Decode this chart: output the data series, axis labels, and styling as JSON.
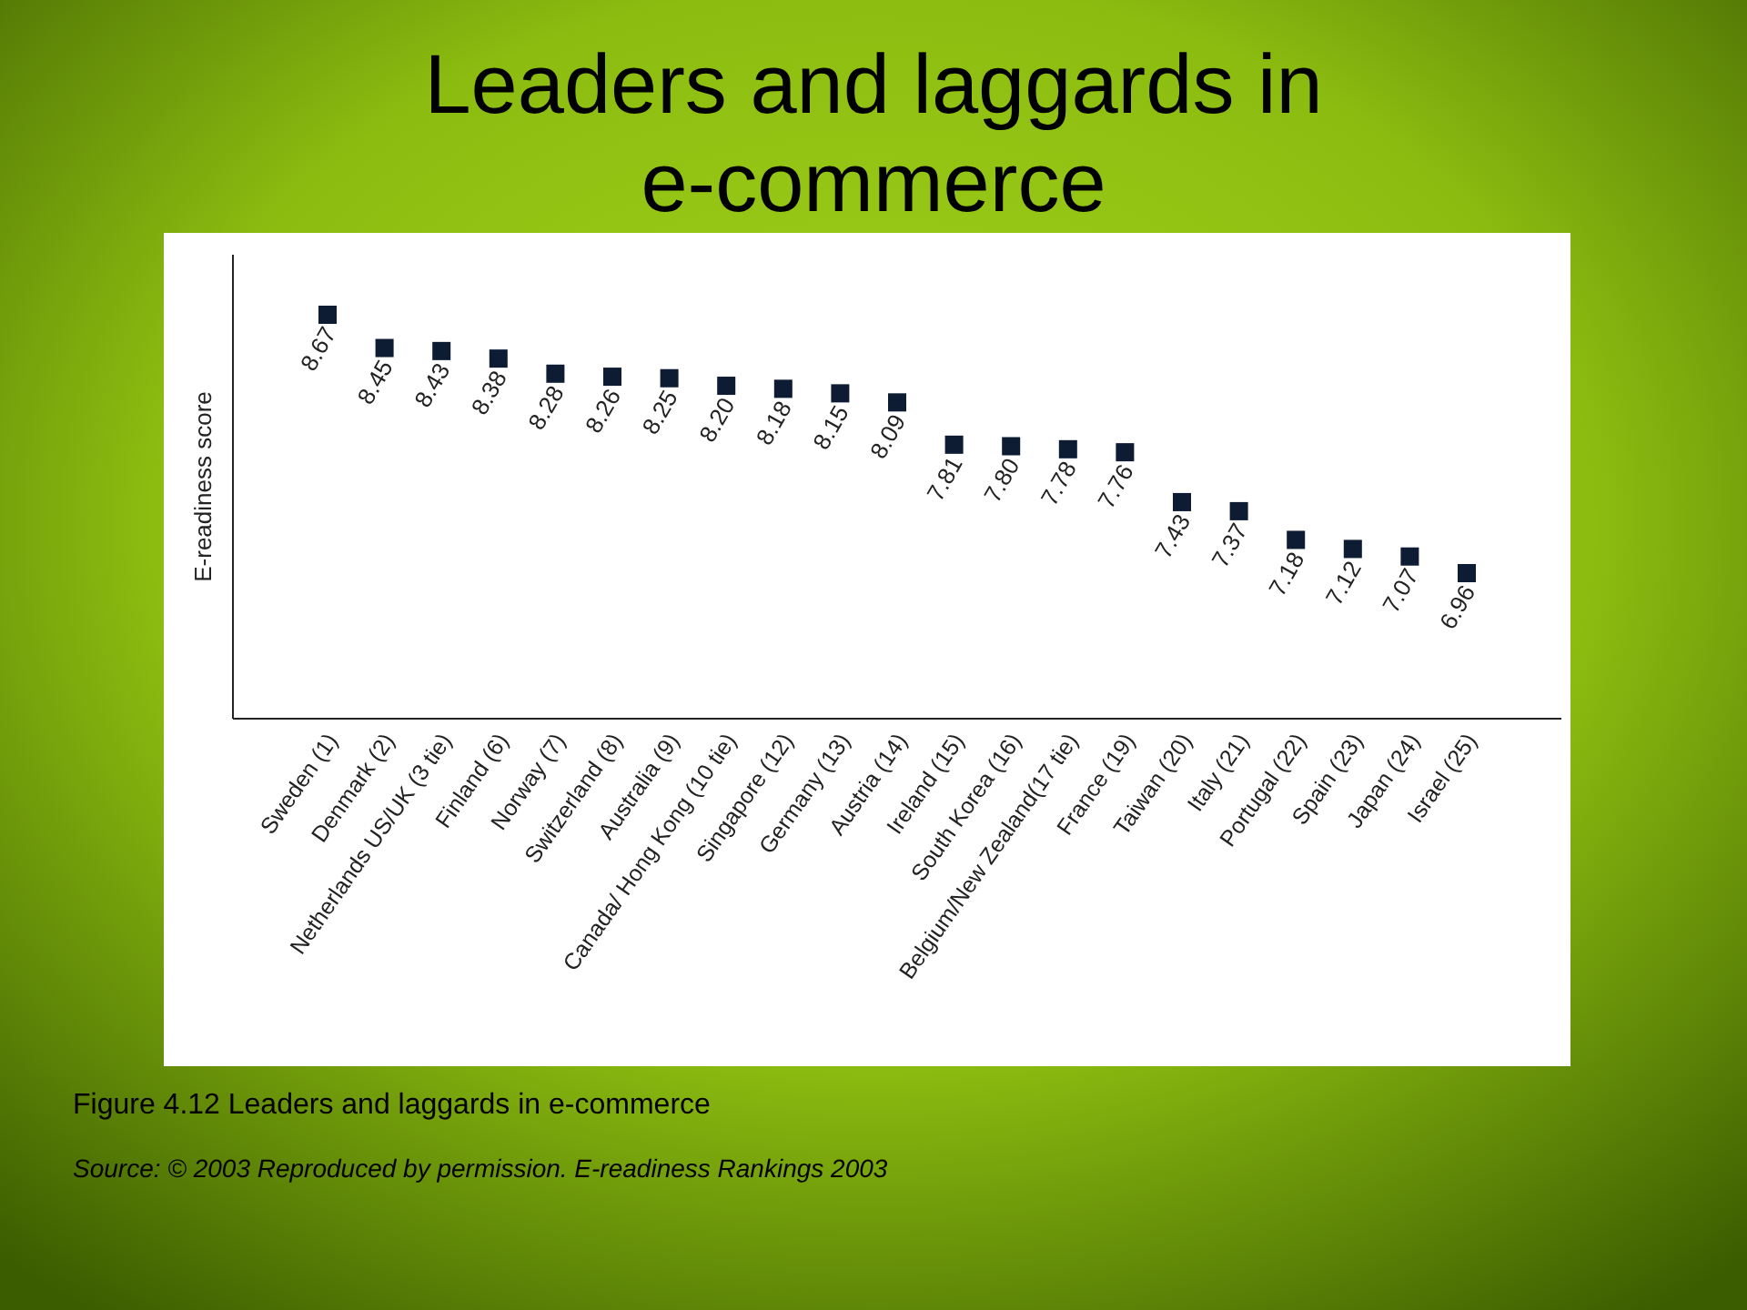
{
  "chart_data": {
    "type": "scatter",
    "title": "Leaders and laggards in e-commerce",
    "ylabel": "E-readiness score",
    "categories": [
      "Sweden (1)",
      "Denmark (2)",
      "Netherlands US/UK (3 tie)",
      "Finland (6)",
      "Norway (7)",
      "Switzerland (8)",
      "Australia (9)",
      "Canada/ Hong Kong (10 tie)",
      "Singapore (12)",
      "Germany (13)",
      "Austria (14)",
      "Ireland (15)",
      "South Korea (16)",
      "Belgium/New Zealand(17 tie)",
      "France (19)",
      "Taiwan (20)",
      "Italy (21)",
      "Portugal (22)",
      "Spain (23)",
      "Japan (24)",
      "Israel (25)"
    ],
    "values": [
      8.67,
      8.45,
      8.43,
      8.38,
      8.28,
      8.26,
      8.25,
      8.2,
      8.18,
      8.15,
      8.09,
      7.81,
      7.8,
      7.78,
      7.76,
      7.43,
      7.37,
      7.18,
      7.12,
      7.07,
      6.96
    ],
    "value_labels": [
      "8.67",
      "8.45",
      "8.43",
      "8.38",
      "8.28",
      "8.26",
      "8.25",
      "8.20",
      "8.18",
      "8.15",
      "8.09",
      "7.81",
      "7.80",
      "7.78",
      "7.76",
      "7.43",
      "7.37",
      "7.18",
      "7.12",
      "7.07",
      "6.96"
    ],
    "color": "#0d1b33",
    "marker": "square",
    "tick_labels": "x",
    "annotations": [
      "Figure 4.12  Leaders and laggards in e-commerce",
      "Source: © 2003 Reproduced by permission. E-readiness Rankings 2003"
    ]
  }
}
